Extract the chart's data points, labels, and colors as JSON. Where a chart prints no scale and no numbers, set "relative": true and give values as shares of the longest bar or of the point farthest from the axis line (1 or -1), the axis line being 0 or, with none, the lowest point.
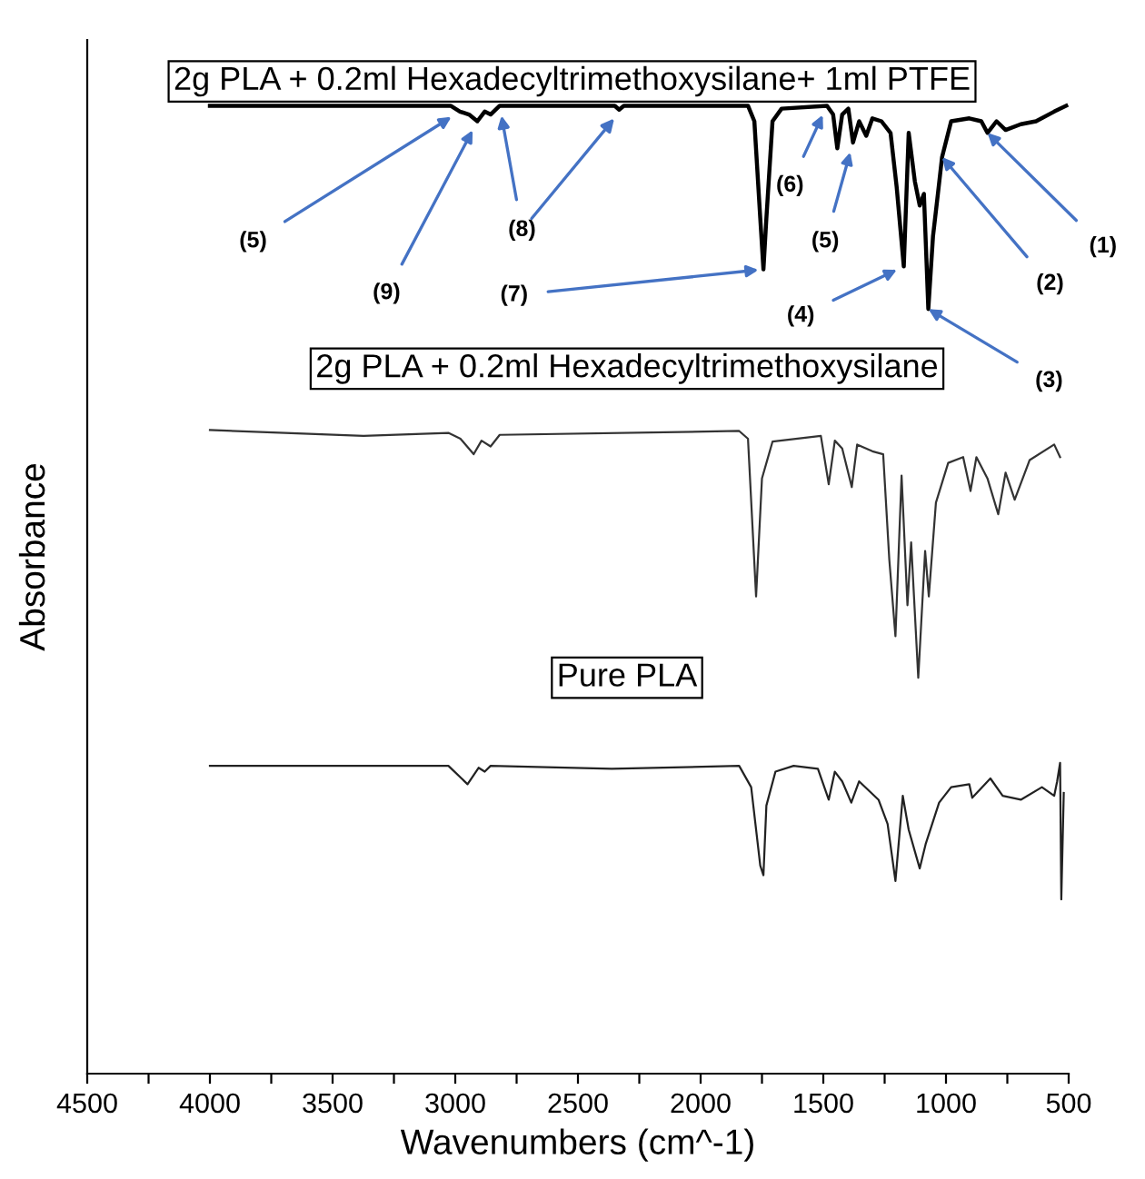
{
  "chart_data": {
    "type": "line",
    "relative": true,
    "xlabel": "Wavenumbers (cm^-1)",
    "ylabel": "Absorbance",
    "xlim": [
      4500,
      500
    ],
    "xticks": [
      4500,
      {
        "value": 4250,
        "label": null
      },
      4000,
      {
        "value": 3750,
        "label": null
      },
      3500,
      {
        "value": 3250,
        "label": null
      },
      3000,
      {
        "value": 2750,
        "label": null
      },
      2500,
      {
        "value": 2250,
        "label": null
      },
      2000,
      {
        "value": 1750,
        "label": null
      },
      1500,
      {
        "value": 1250,
        "label": null
      },
      1000,
      {
        "value": 750,
        "label": null
      },
      500
    ],
    "grid": false,
    "legend": false,
    "marker": "none",
    "line_style": "solid",
    "series": [
      {
        "name": "2g PLA + 0.2ml Hexadecyltrimethoxysilane+ 1ml PTFE",
        "color": "#000000",
        "x": [
          4000,
          3019,
          2981,
          2944,
          2910,
          2880,
          2856,
          2819,
          2350,
          2332,
          2313,
          1807,
          1781,
          1757,
          1744,
          1732,
          1707,
          1670,
          1485,
          1460,
          1443,
          1423,
          1398,
          1379,
          1354,
          1325,
          1300,
          1263,
          1226,
          1201,
          1172,
          1152,
          1127,
          1107,
          1090,
          1072,
          1053,
          1033,
          1016,
          979,
          905,
          856,
          831,
          794,
          757,
          695,
          633,
          559,
          510
        ],
        "values": [
          1.0,
          1.0,
          0.994,
          0.991,
          0.984,
          0.994,
          0.991,
          1.0,
          1.0,
          0.996,
          1.0,
          1.0,
          0.984,
          0.884,
          0.831,
          0.884,
          0.984,
          0.997,
          1.0,
          0.991,
          0.956,
          0.991,
          0.997,
          0.962,
          0.984,
          0.969,
          0.987,
          0.984,
          0.972,
          0.916,
          0.834,
          0.972,
          0.922,
          0.897,
          0.909,
          0.79,
          0.865,
          0.909,
          0.947,
          0.984,
          0.987,
          0.984,
          0.972,
          0.984,
          0.975,
          0.981,
          0.984,
          0.994,
          1.0
        ]
      },
      {
        "name": "2g PLA + 0.2ml Hexadecyltrimethoxysilane",
        "color": "#333333",
        "x": [
          4000,
          3374,
          3028,
          2979,
          2925,
          2893,
          2856,
          2819,
          1843,
          1807,
          1774,
          1750,
          1707,
          1510,
          1478,
          1453,
          1423,
          1384,
          1362,
          1300,
          1256,
          1231,
          1206,
          1181,
          1157,
          1142,
          1113,
          1085,
          1070,
          1041,
          991,
          930,
          900,
          876,
          831,
          787,
          757,
          720,
          659,
          559,
          535
        ],
        "values": [
          0.665,
          0.659,
          0.662,
          0.656,
          0.64,
          0.654,
          0.648,
          0.66,
          0.664,
          0.656,
          0.493,
          0.615,
          0.653,
          0.659,
          0.609,
          0.654,
          0.646,
          0.606,
          0.65,
          0.643,
          0.64,
          0.531,
          0.452,
          0.618,
          0.484,
          0.549,
          0.409,
          0.54,
          0.493,
          0.59,
          0.631,
          0.637,
          0.602,
          0.637,
          0.615,
          0.578,
          0.621,
          0.593,
          0.634,
          0.65,
          0.637
        ]
      },
      {
        "name": "Pure PLA",
        "color": "#222222",
        "x": [
          4000,
          3028,
          2950,
          2905,
          2880,
          2856,
          2362,
          1843,
          1794,
          1757,
          1744,
          1732,
          1695,
          1621,
          1522,
          1478,
          1453,
          1423,
          1386,
          1354,
          1275,
          1238,
          1206,
          1176,
          1152,
          1107,
          1083,
          1028,
          979,
          905,
          893,
          819,
          769,
          695,
          609,
          559,
          547,
          535,
          530,
          520
        ],
        "values": [
          0.318,
          0.318,
          0.299,
          0.316,
          0.312,
          0.318,
          0.315,
          0.318,
          0.296,
          0.215,
          0.205,
          0.277,
          0.312,
          0.318,
          0.315,
          0.283,
          0.312,
          0.302,
          0.28,
          0.302,
          0.283,
          0.258,
          0.199,
          0.287,
          0.252,
          0.212,
          0.237,
          0.28,
          0.296,
          0.299,
          0.285,
          0.305,
          0.287,
          0.283,
          0.296,
          0.287,
          0.302,
          0.321,
          0.18,
          0.29
        ]
      }
    ],
    "annotations": [
      {
        "text": "(5)",
        "x": 2981,
        "y": 0.994
      },
      {
        "text": "(9)",
        "x": 2910,
        "y": 0.984
      },
      {
        "text": "(8)",
        "x": 2819,
        "y": 1.0
      },
      {
        "text": "(7)",
        "x": 1744,
        "y": 0.831
      },
      {
        "text": "(6)",
        "x": 1485,
        "y": 1.0
      },
      {
        "text": "(5)",
        "x": 1379,
        "y": 0.962
      },
      {
        "text": "(4)",
        "x": 1172,
        "y": 0.834
      },
      {
        "text": "(3)",
        "x": 1072,
        "y": 0.79
      },
      {
        "text": "(2)",
        "x": 1016,
        "y": 0.947
      },
      {
        "text": "(1)",
        "x": 831,
        "y": 0.972
      }
    ]
  }
}
